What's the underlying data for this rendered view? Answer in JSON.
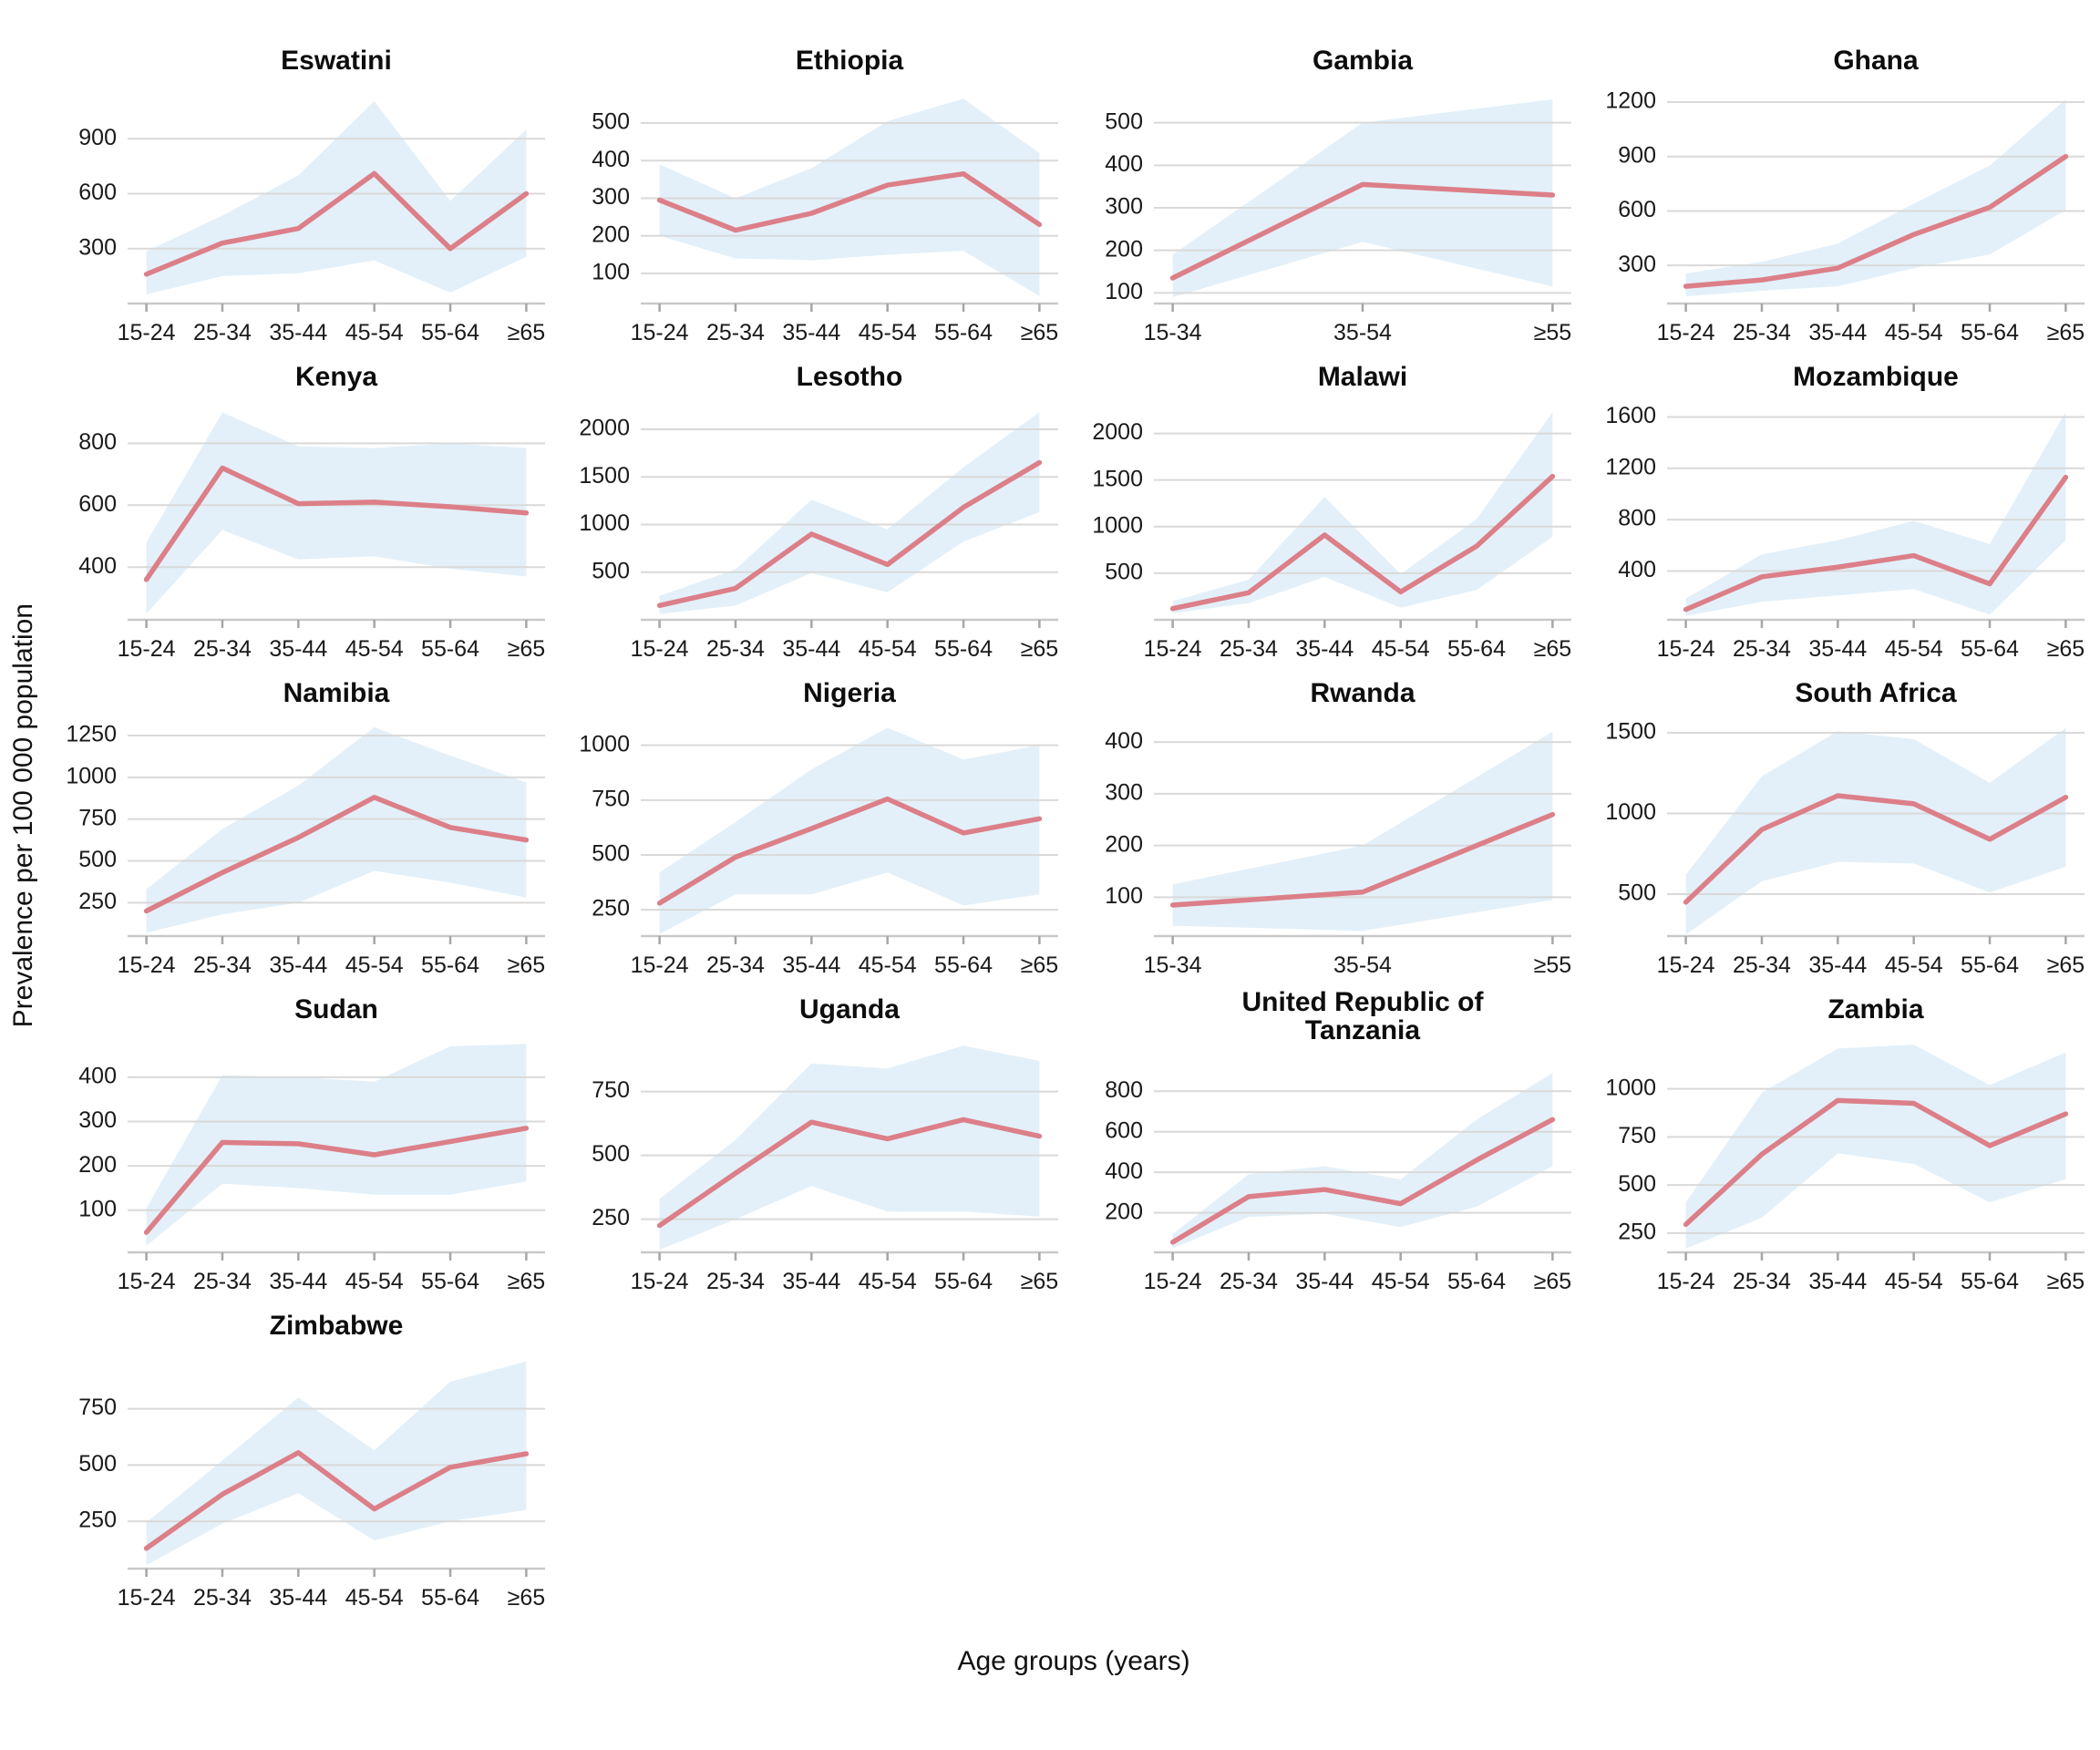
{
  "figure": {
    "ylabel": "Prevalence per 100 000 population",
    "xlabel": "Age groups (years)"
  },
  "style": {
    "line_color": "#DC7F88",
    "band_color": "#E3F0F9",
    "grid_color": "#D9D9D9",
    "axis_color": "#C9C9C9",
    "tick_color": "#A6A6A6"
  },
  "chart_data": [
    {
      "type": "line",
      "title_lines": [
        "Eswatini"
      ],
      "categories": [
        "15-24",
        "25-34",
        "35-44",
        "45-54",
        "55-64",
        "≥65"
      ],
      "values": [
        160,
        330,
        410,
        710,
        300,
        600
      ],
      "lower": [
        50,
        150,
        165,
        235,
        60,
        255
      ],
      "upper": [
        285,
        480,
        700,
        1105,
        560,
        950
      ],
      "yticks": [
        300,
        600,
        900
      ],
      "ylim": [
        0,
        1150
      ]
    },
    {
      "type": "line",
      "title_lines": [
        "Ethiopia"
      ],
      "categories": [
        "15-24",
        "25-34",
        "35-44",
        "45-54",
        "55-64",
        "≥65"
      ],
      "values": [
        295,
        215,
        260,
        335,
        365,
        230
      ],
      "lower": [
        200,
        140,
        135,
        150,
        160,
        40
      ],
      "upper": [
        390,
        300,
        380,
        505,
        565,
        420
      ],
      "yticks": [
        100,
        200,
        300,
        400,
        500
      ],
      "ylim": [
        20,
        580
      ]
    },
    {
      "type": "line",
      "title_lines": [
        "Gambia"
      ],
      "categories": [
        "15-34",
        "35-54",
        "≥55"
      ],
      "values": [
        135,
        355,
        330
      ],
      "lower": [
        90,
        220,
        115
      ],
      "upper": [
        190,
        500,
        555
      ],
      "yticks": [
        100,
        200,
        300,
        400,
        500
      ],
      "ylim": [
        75,
        570
      ]
    },
    {
      "type": "line",
      "title_lines": [
        "Ghana"
      ],
      "categories": [
        "15-24",
        "25-34",
        "35-44",
        "45-54",
        "55-64",
        "≥65"
      ],
      "values": [
        185,
        220,
        285,
        470,
        620,
        900
      ],
      "lower": [
        130,
        160,
        185,
        285,
        360,
        605
      ],
      "upper": [
        255,
        320,
        420,
        640,
        850,
        1215
      ],
      "yticks": [
        300,
        600,
        900,
        1200
      ],
      "ylim": [
        90,
        1250
      ]
    },
    {
      "type": "line",
      "title_lines": [
        "Kenya"
      ],
      "categories": [
        "15-24",
        "25-34",
        "35-44",
        "45-54",
        "55-64",
        "≥65"
      ],
      "values": [
        360,
        720,
        605,
        610,
        595,
        575
      ],
      "lower": [
        250,
        520,
        425,
        435,
        395,
        370
      ],
      "upper": [
        480,
        900,
        790,
        785,
        800,
        785
      ],
      "yticks": [
        400,
        600,
        800
      ],
      "ylim": [
        230,
        910
      ]
    },
    {
      "type": "line",
      "title_lines": [
        "Lesotho"
      ],
      "categories": [
        "15-24",
        "25-34",
        "35-44",
        "45-54",
        "55-64",
        "≥65"
      ],
      "values": [
        150,
        330,
        900,
        580,
        1180,
        1650
      ],
      "lower": [
        60,
        150,
        490,
        290,
        820,
        1130
      ],
      "upper": [
        250,
        530,
        1260,
        950,
        1600,
        2180
      ],
      "yticks": [
        500,
        1000,
        1500,
        2000
      ],
      "ylim": [
        0,
        2210
      ]
    },
    {
      "type": "line",
      "title_lines": [
        "Malawi"
      ],
      "categories": [
        "15-24",
        "25-34",
        "35-44",
        "45-54",
        "55-64",
        "≥65"
      ],
      "values": [
        120,
        290,
        910,
        300,
        790,
        1540
      ],
      "lower": [
        70,
        180,
        460,
        130,
        320,
        890
      ],
      "upper": [
        200,
        430,
        1320,
        490,
        1080,
        2230
      ],
      "yticks": [
        500,
        1000,
        1500,
        2000
      ],
      "ylim": [
        0,
        2260
      ]
    },
    {
      "type": "line",
      "title_lines": [
        "Mozambique"
      ],
      "categories": [
        "15-24",
        "25-34",
        "35-44",
        "45-54",
        "55-64",
        "≥65"
      ],
      "values": [
        100,
        355,
        430,
        520,
        300,
        1130
      ],
      "lower": [
        50,
        160,
        210,
        260,
        60,
        640
      ],
      "upper": [
        185,
        530,
        640,
        790,
        610,
        1640
      ],
      "yticks": [
        400,
        800,
        1200,
        1600
      ],
      "ylim": [
        20,
        1660
      ]
    },
    {
      "type": "line",
      "title_lines": [
        "Namibia"
      ],
      "categories": [
        "15-24",
        "25-34",
        "35-44",
        "45-54",
        "55-64",
        "≥65"
      ],
      "values": [
        200,
        430,
        640,
        880,
        700,
        625
      ],
      "lower": [
        70,
        180,
        250,
        440,
        370,
        280
      ],
      "upper": [
        330,
        690,
        950,
        1300,
        1130,
        970
      ],
      "yticks": [
        250,
        500,
        750,
        1000,
        1250
      ],
      "ylim": [
        50,
        1310
      ]
    },
    {
      "type": "line",
      "title_lines": [
        "Nigeria"
      ],
      "categories": [
        "15-24",
        "25-34",
        "35-44",
        "45-54",
        "55-64",
        "≥65"
      ],
      "values": [
        280,
        490,
        620,
        755,
        600,
        665
      ],
      "lower": [
        140,
        320,
        320,
        420,
        270,
        320
      ],
      "upper": [
        420,
        650,
        890,
        1080,
        935,
        1000
      ],
      "yticks": [
        250,
        500,
        750,
        1000
      ],
      "ylim": [
        130,
        1090
      ]
    },
    {
      "type": "line",
      "title_lines": [
        "Rwanda"
      ],
      "categories": [
        "15-34",
        "35-54",
        "≥55"
      ],
      "values": [
        85,
        110,
        260
      ],
      "lower": [
        45,
        35,
        95
      ],
      "upper": [
        125,
        200,
        420
      ],
      "yticks": [
        100,
        200,
        300,
        400
      ],
      "ylim": [
        25,
        432
      ]
    },
    {
      "type": "line",
      "title_lines": [
        "South Africa"
      ],
      "categories": [
        "15-24",
        "25-34",
        "35-44",
        "45-54",
        "55-64",
        "≥65"
      ],
      "values": [
        450,
        900,
        1110,
        1060,
        840,
        1100
      ],
      "lower": [
        250,
        580,
        700,
        690,
        510,
        670
      ],
      "upper": [
        620,
        1230,
        1510,
        1460,
        1190,
        1530
      ],
      "yticks": [
        500,
        1000,
        1500
      ],
      "ylim": [
        240,
        1545
      ]
    },
    {
      "type": "line",
      "title_lines": [
        "Sudan"
      ],
      "categories": [
        "15-24",
        "25-34",
        "35-44",
        "45-54",
        "55-64",
        "≥65"
      ],
      "values": [
        50,
        253,
        250,
        225,
        255,
        285
      ],
      "lower": [
        20,
        160,
        150,
        135,
        135,
        165
      ],
      "upper": [
        105,
        405,
        400,
        390,
        470,
        475
      ],
      "yticks": [
        100,
        200,
        300,
        400
      ],
      "ylim": [
        5,
        480
      ]
    },
    {
      "type": "line",
      "title_lines": [
        "Uganda"
      ],
      "categories": [
        "15-24",
        "25-34",
        "35-44",
        "45-54",
        "55-64",
        "≥65"
      ],
      "values": [
        225,
        430,
        630,
        565,
        640,
        575
      ],
      "lower": [
        130,
        250,
        380,
        280,
        280,
        260
      ],
      "upper": [
        330,
        560,
        860,
        840,
        930,
        870
      ],
      "yticks": [
        250,
        500,
        750
      ],
      "ylim": [
        120,
        945
      ]
    },
    {
      "type": "line",
      "title_lines": [
        "United Republic of",
        "Tanzania"
      ],
      "categories": [
        "15-24",
        "25-34",
        "35-44",
        "45-54",
        "55-64",
        "≥65"
      ],
      "values": [
        55,
        280,
        315,
        245,
        460,
        660
      ],
      "lower": [
        25,
        180,
        195,
        130,
        230,
        430
      ],
      "upper": [
        95,
        390,
        430,
        365,
        660,
        890
      ],
      "yticks": [
        200,
        400,
        600,
        800
      ],
      "ylim": [
        5,
        900
      ]
    },
    {
      "type": "line",
      "title_lines": [
        "Zambia"
      ],
      "categories": [
        "15-24",
        "25-34",
        "35-44",
        "45-54",
        "55-64",
        "≥65"
      ],
      "values": [
        295,
        660,
        940,
        925,
        705,
        870
      ],
      "lower": [
        170,
        330,
        665,
        610,
        410,
        530
      ],
      "upper": [
        410,
        980,
        1210,
        1230,
        1020,
        1190
      ],
      "yticks": [
        250,
        500,
        750,
        1000
      ],
      "ylim": [
        150,
        1245
      ]
    },
    {
      "type": "line",
      "title_lines": [
        "Zimbabwe"
      ],
      "categories": [
        "15-24",
        "25-34",
        "35-44",
        "45-54",
        "55-64",
        "≥65"
      ],
      "values": [
        130,
        370,
        555,
        305,
        490,
        550
      ],
      "lower": [
        55,
        240,
        375,
        165,
        250,
        300
      ],
      "upper": [
        245,
        520,
        800,
        565,
        870,
        960
      ],
      "yticks": [
        250,
        500,
        750
      ],
      "ylim": [
        40,
        975
      ]
    }
  ]
}
